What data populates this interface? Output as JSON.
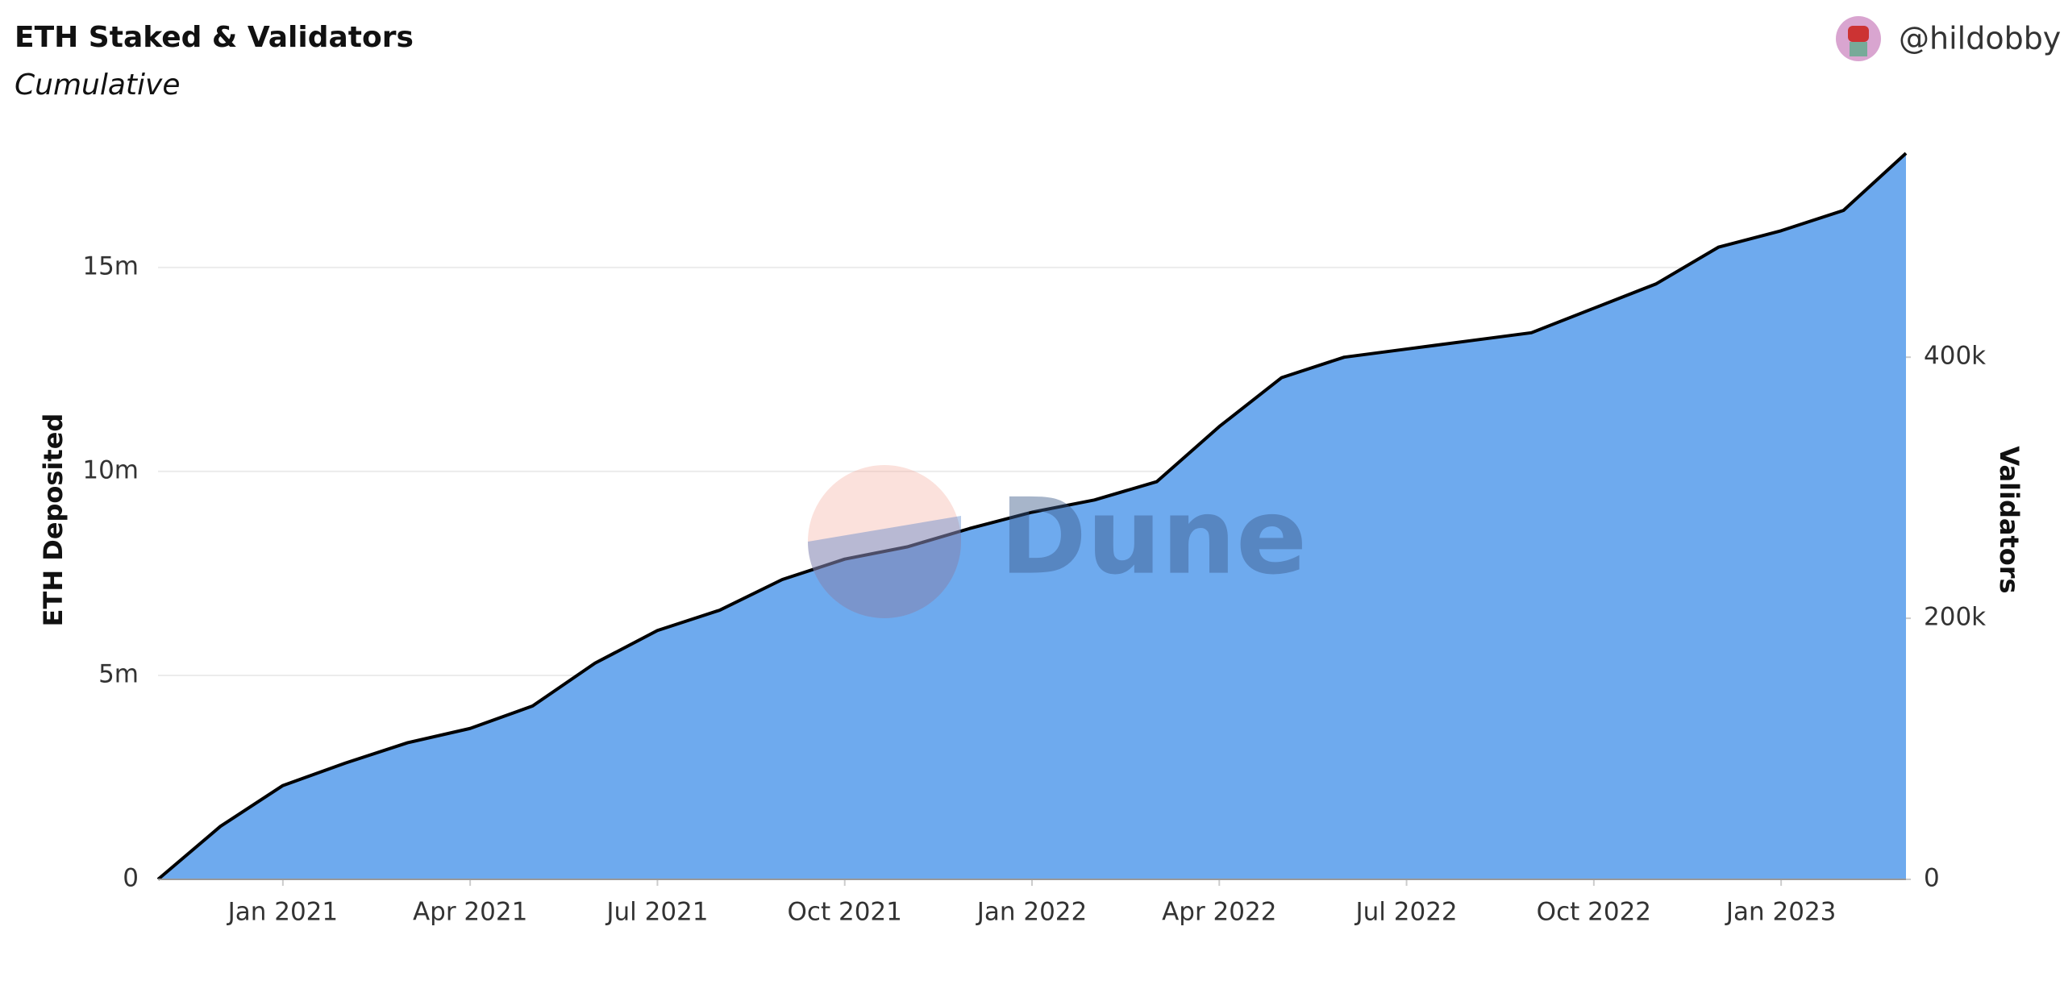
{
  "chart_data": {
    "type": "area",
    "title": "ETH Staked & Validators",
    "subtitle": "Cumulative",
    "author": "@hildobby",
    "watermark": "Dune",
    "ylabel": "ETH Deposited",
    "y2label": "Validators",
    "x": [
      "2020-11",
      "2020-12",
      "2021-01",
      "2021-02",
      "2021-03",
      "2021-04",
      "2021-05",
      "2021-06",
      "2021-07",
      "2021-08",
      "2021-09",
      "2021-10",
      "2021-11",
      "2021-12",
      "2022-01",
      "2022-02",
      "2022-03",
      "2022-04",
      "2022-05",
      "2022-06",
      "2022-07",
      "2022-08",
      "2022-09",
      "2022-10",
      "2022-11",
      "2022-12",
      "2023-01",
      "2023-02",
      "2023-03"
    ],
    "series": [
      {
        "name": "ETH Deposited",
        "color": "#6eaaee",
        "line_color": "#000000",
        "values": [
          0,
          1300000,
          2300000,
          2850000,
          3350000,
          3700000,
          4250000,
          5300000,
          6100000,
          6600000,
          7350000,
          7850000,
          8150000,
          8600000,
          9000000,
          9300000,
          9750000,
          11100000,
          12300000,
          12800000,
          13000000,
          13200000,
          13400000,
          14000000,
          14600000,
          15500000,
          15900000,
          16400000,
          17800000
        ]
      }
    ],
    "xlim": [
      "2020-11",
      "2023-03"
    ],
    "xticks": [
      {
        "value": "2021-01",
        "label": "Jan 2021"
      },
      {
        "value": "2021-04",
        "label": "Apr 2021"
      },
      {
        "value": "2021-07",
        "label": "Jul 2021"
      },
      {
        "value": "2021-10",
        "label": "Oct 2021"
      },
      {
        "value": "2022-01",
        "label": "Jan 2022"
      },
      {
        "value": "2022-04",
        "label": "Apr 2022"
      },
      {
        "value": "2022-07",
        "label": "Jul 2022"
      },
      {
        "value": "2022-10",
        "label": "Oct 2022"
      },
      {
        "value": "2023-01",
        "label": "Jan 2023"
      }
    ],
    "ylim": [
      0,
      18000000
    ],
    "yticks": [
      0,
      {
        "value": 5000000,
        "label": "5m"
      },
      {
        "value": 10000000,
        "label": "10m"
      },
      {
        "value": 15000000,
        "label": "15m"
      }
    ],
    "y2lim": [
      0,
      562500
    ],
    "y2ticks": [
      0,
      {
        "value": 200000,
        "label": "200k"
      },
      {
        "value": 400000,
        "label": "400k"
      }
    ],
    "grid": true
  }
}
